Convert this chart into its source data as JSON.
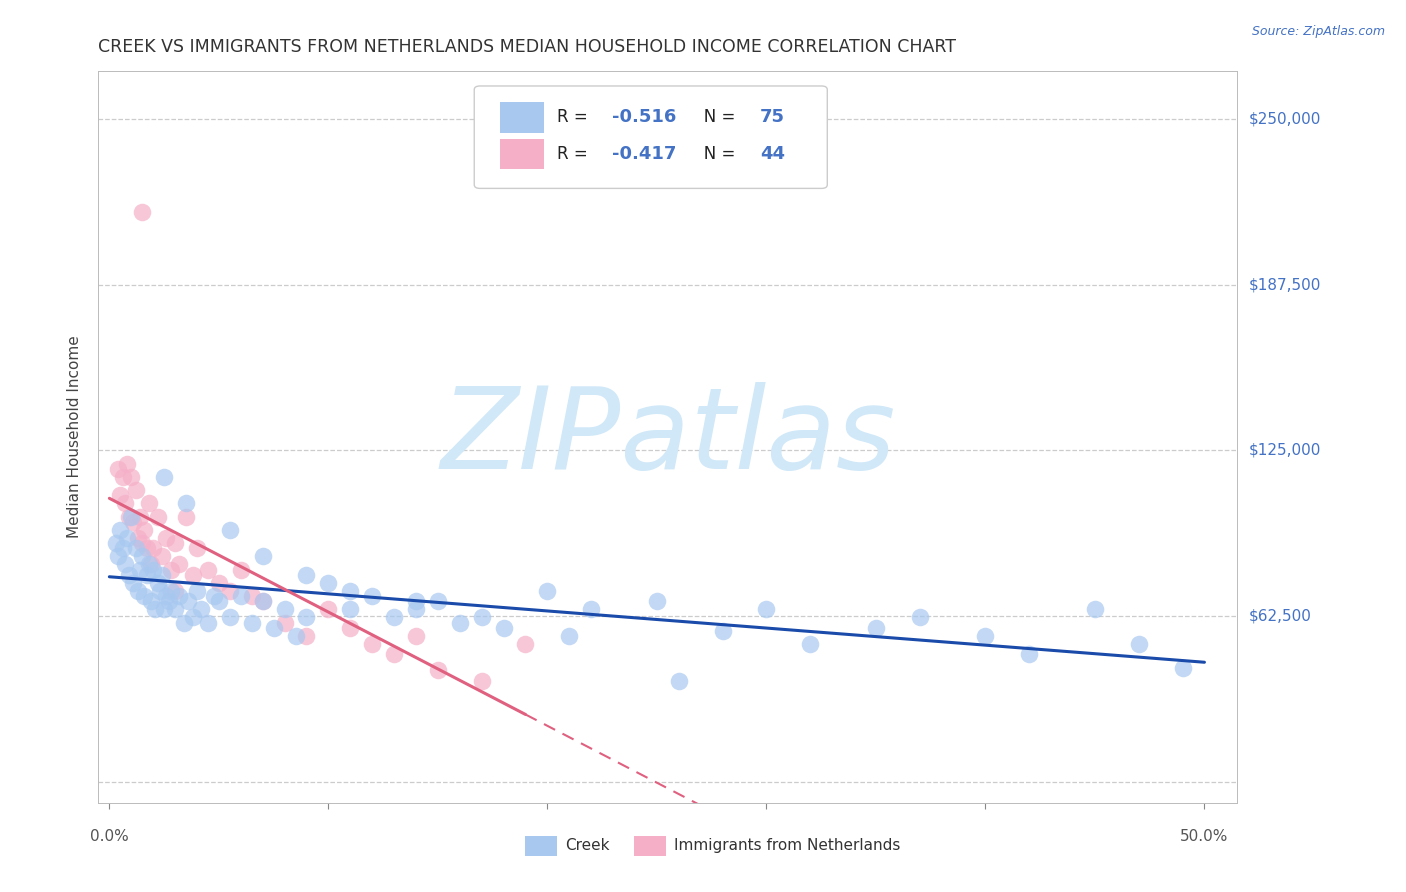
{
  "title": "CREEK VS IMMIGRANTS FROM NETHERLANDS MEDIAN HOUSEHOLD INCOME CORRELATION CHART",
  "source": "Source: ZipAtlas.com",
  "ylabel": "Median Household Income",
  "yticks": [
    0,
    62500,
    125000,
    187500,
    250000
  ],
  "ytick_labels": [
    "",
    "$62,500",
    "$125,000",
    "$187,500",
    "$250,000"
  ],
  "xlim": [
    0,
    50
  ],
  "ylim": [
    0,
    260000
  ],
  "creek_color": "#a8c8f0",
  "creek_line_color": "#1a4aaa",
  "netherlands_color": "#f5b0c8",
  "netherlands_line_color": "#e06080",
  "creek_R": -0.516,
  "creek_N": 75,
  "netherlands_R": -0.417,
  "netherlands_N": 44,
  "watermark": "ZIPatlas",
  "watermark_color": "#d0e8f8",
  "creek_x": [
    0.3,
    0.4,
    0.5,
    0.6,
    0.7,
    0.8,
    0.9,
    1.0,
    1.1,
    1.2,
    1.3,
    1.4,
    1.5,
    1.6,
    1.7,
    1.8,
    1.9,
    2.0,
    2.1,
    2.2,
    2.3,
    2.4,
    2.5,
    2.6,
    2.7,
    2.8,
    3.0,
    3.2,
    3.4,
    3.6,
    3.8,
    4.0,
    4.2,
    4.5,
    4.8,
    5.0,
    5.5,
    6.0,
    6.5,
    7.0,
    7.5,
    8.0,
    8.5,
    9.0,
    10.0,
    11.0,
    12.0,
    13.0,
    14.0,
    15.0,
    16.0,
    18.0,
    20.0,
    22.0,
    25.0,
    28.0,
    30.0,
    32.0,
    35.0,
    37.0,
    40.0,
    42.0,
    45.0,
    47.0,
    49.0,
    2.5,
    3.5,
    5.5,
    7.0,
    9.0,
    11.0,
    14.0,
    17.0,
    21.0,
    26.0
  ],
  "creek_y": [
    90000,
    85000,
    95000,
    88000,
    82000,
    92000,
    78000,
    100000,
    75000,
    88000,
    72000,
    80000,
    85000,
    70000,
    78000,
    82000,
    68000,
    80000,
    65000,
    75000,
    72000,
    78000,
    65000,
    70000,
    68000,
    72000,
    65000,
    70000,
    60000,
    68000,
    62000,
    72000,
    65000,
    60000,
    70000,
    68000,
    62000,
    70000,
    60000,
    68000,
    58000,
    65000,
    55000,
    62000,
    75000,
    65000,
    70000,
    62000,
    65000,
    68000,
    60000,
    58000,
    72000,
    65000,
    68000,
    57000,
    65000,
    52000,
    58000,
    62000,
    55000,
    48000,
    65000,
    52000,
    43000,
    115000,
    105000,
    95000,
    85000,
    78000,
    72000,
    68000,
    62000,
    55000,
    38000
  ],
  "netherlands_x": [
    0.4,
    0.5,
    0.6,
    0.7,
    0.8,
    0.9,
    1.0,
    1.1,
    1.2,
    1.3,
    1.4,
    1.5,
    1.6,
    1.7,
    1.8,
    1.9,
    2.0,
    2.2,
    2.4,
    2.6,
    2.8,
    3.0,
    3.2,
    3.5,
    3.8,
    4.0,
    4.5,
    5.0,
    5.5,
    6.0,
    6.5,
    7.0,
    8.0,
    9.0,
    10.0,
    11.0,
    12.0,
    13.0,
    14.0,
    15.0,
    17.0,
    19.0,
    1.5,
    3.0
  ],
  "netherlands_y": [
    118000,
    108000,
    115000,
    105000,
    120000,
    100000,
    115000,
    98000,
    110000,
    92000,
    100000,
    215000,
    95000,
    88000,
    105000,
    82000,
    88000,
    100000,
    85000,
    92000,
    80000,
    90000,
    82000,
    100000,
    78000,
    88000,
    80000,
    75000,
    72000,
    80000,
    70000,
    68000,
    60000,
    55000,
    65000,
    58000,
    52000,
    48000,
    55000,
    42000,
    38000,
    52000,
    90000,
    72000
  ]
}
